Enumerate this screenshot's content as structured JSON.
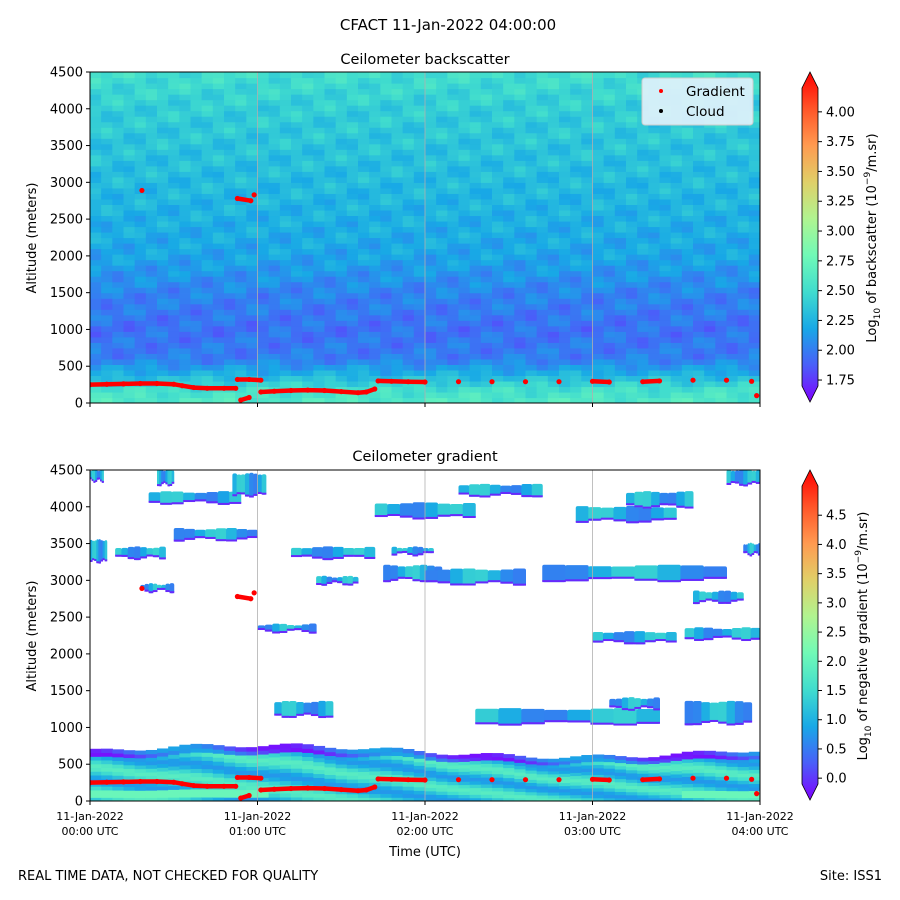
{
  "figure": {
    "suptitle": "CFACT 11-Jan-2022 04:00:00",
    "footer_left": "REAL TIME DATA, NOT CHECKED FOR QUALITY",
    "footer_right": "Site: ISS1"
  },
  "colors": {
    "rainbow": [
      "#8000ff",
      "#4a5ef9",
      "#18a8e6",
      "#40dcce",
      "#70fab7",
      "#b0f490",
      "#e0cf68",
      "#ff9a50",
      "#ff5528",
      "#ff0000"
    ],
    "gradient_marker": "#ff0000",
    "cloud_marker": "#000000",
    "grid": "#b0b0b0"
  },
  "chart_data": [
    {
      "type": "heatmap",
      "id": "backscatter",
      "title": "Ceilometer backscatter",
      "ylabel": "Altitude (meters)",
      "ylim": [
        0,
        4500
      ],
      "yticks": [
        0,
        500,
        1000,
        1500,
        2000,
        2500,
        3000,
        3500,
        4000,
        4500
      ],
      "xlim_hours": [
        0,
        4
      ],
      "colorbar": {
        "label": "Log10 of backscatter (10^-9/m.sr)",
        "range": [
          1.7,
          4.2
        ],
        "ticks": [
          "1.75",
          "2.00",
          "2.25",
          "2.50",
          "2.75",
          "3.00",
          "3.25",
          "3.50",
          "3.75",
          "4.00"
        ],
        "tick_values": [
          1.75,
          2.0,
          2.25,
          2.5,
          2.75,
          3.0,
          3.25,
          3.5,
          3.75,
          4.0
        ]
      },
      "legend": {
        "position": "top-right",
        "entries": [
          "Gradient",
          "Cloud"
        ]
      },
      "profile": [
        {
          "alt": 0,
          "val": 2.65
        },
        {
          "alt": 200,
          "val": 2.55
        },
        {
          "alt": 400,
          "val": 2.3
        },
        {
          "alt": 600,
          "val": 2.1
        },
        {
          "alt": 1000,
          "val": 2.05
        },
        {
          "alt": 1500,
          "val": 2.12
        },
        {
          "alt": 2000,
          "val": 2.25
        },
        {
          "alt": 3000,
          "val": 2.35
        },
        {
          "alt": 4000,
          "val": 2.45
        },
        {
          "alt": 4500,
          "val": 2.55
        }
      ]
    },
    {
      "type": "heatmap",
      "id": "gradient",
      "title": "Ceilometer gradient",
      "ylabel": "Altitude (meters)",
      "xlabel": "Time (UTC)",
      "ylim": [
        0,
        4500
      ],
      "yticks": [
        0,
        500,
        1000,
        1500,
        2000,
        2500,
        3000,
        3500,
        4000,
        4500
      ],
      "xlim_hours": [
        0,
        4
      ],
      "xtick_hours": [
        0,
        1,
        2,
        3,
        4
      ],
      "xticks": [
        [
          "11-Jan-2022",
          "00:00 UTC"
        ],
        [
          "11-Jan-2022",
          "01:00 UTC"
        ],
        [
          "11-Jan-2022",
          "02:00 UTC"
        ],
        [
          "11-Jan-2022",
          "03:00 UTC"
        ],
        [
          "11-Jan-2022",
          "04:00 UTC"
        ]
      ],
      "colorbar": {
        "label": "Log10 of negative gradient (10^-9/m.sr)",
        "range": [
          -0.1,
          5.0
        ],
        "ticks": [
          "0.0",
          "0.5",
          "1.0",
          "1.5",
          "2.0",
          "2.5",
          "3.0",
          "3.5",
          "4.0",
          "4.5"
        ],
        "tick_values": [
          0.0,
          0.5,
          1.0,
          1.5,
          2.0,
          2.5,
          3.0,
          3.5,
          4.0,
          4.5
        ]
      },
      "cloud_patches": [
        {
          "t0": 0.0,
          "t1": 0.1,
          "a0": 3250,
          "a1": 3550
        },
        {
          "t0": 0.15,
          "t1": 0.45,
          "a0": 3300,
          "a1": 3450
        },
        {
          "t0": 0.3,
          "t1": 0.5,
          "a0": 2850,
          "a1": 2950
        },
        {
          "t0": 0.35,
          "t1": 0.9,
          "a0": 4050,
          "a1": 4200
        },
        {
          "t0": 0.4,
          "t1": 0.5,
          "a0": 4300,
          "a1": 4500
        },
        {
          "t0": 0.5,
          "t1": 1.0,
          "a0": 3550,
          "a1": 3700
        },
        {
          "t0": 0.85,
          "t1": 1.05,
          "a0": 4150,
          "a1": 4450
        },
        {
          "t0": 1.2,
          "t1": 1.7,
          "a0": 3300,
          "a1": 3450
        },
        {
          "t0": 1.0,
          "t1": 1.35,
          "a0": 2300,
          "a1": 2400
        },
        {
          "t0": 1.1,
          "t1": 1.45,
          "a0": 1150,
          "a1": 1350
        },
        {
          "t0": 1.35,
          "t1": 1.6,
          "a0": 2950,
          "a1": 3050
        },
        {
          "t0": 1.75,
          "t1": 2.1,
          "a0": 3000,
          "a1": 3200
        },
        {
          "t0": 1.8,
          "t1": 2.05,
          "a0": 3350,
          "a1": 3450
        },
        {
          "t0": 1.7,
          "t1": 2.3,
          "a0": 3850,
          "a1": 4050
        },
        {
          "t0": 2.0,
          "t1": 2.6,
          "a0": 2950,
          "a1": 3150
        },
        {
          "t0": 2.2,
          "t1": 2.7,
          "a0": 4150,
          "a1": 4300
        },
        {
          "t0": 2.3,
          "t1": 3.4,
          "a0": 1050,
          "a1": 1250
        },
        {
          "t0": 2.7,
          "t1": 3.8,
          "a0": 3000,
          "a1": 3200
        },
        {
          "t0": 2.9,
          "t1": 3.5,
          "a0": 3800,
          "a1": 4000
        },
        {
          "t0": 3.0,
          "t1": 3.5,
          "a0": 2150,
          "a1": 2300
        },
        {
          "t0": 3.1,
          "t1": 3.4,
          "a0": 1250,
          "a1": 1400
        },
        {
          "t0": 3.2,
          "t1": 3.6,
          "a0": 4000,
          "a1": 4200
        },
        {
          "t0": 3.55,
          "t1": 4.0,
          "a0": 2200,
          "a1": 2350
        },
        {
          "t0": 3.55,
          "t1": 3.95,
          "a0": 1050,
          "a1": 1350
        },
        {
          "t0": 3.6,
          "t1": 3.9,
          "a0": 2700,
          "a1": 2850
        },
        {
          "t0": 3.8,
          "t1": 4.0,
          "a0": 4300,
          "a1": 4500
        },
        {
          "t0": 3.9,
          "t1": 4.0,
          "a0": 3350,
          "a1": 3500
        },
        {
          "t0": 0.0,
          "t1": 0.08,
          "a0": 4350,
          "a1": 4500
        }
      ]
    }
  ],
  "gradient_points": [
    {
      "t": 0.0,
      "alt": 250
    },
    {
      "t": 0.1,
      "alt": 255
    },
    {
      "t": 0.2,
      "alt": 260
    },
    {
      "t": 0.3,
      "alt": 265
    },
    {
      "t": 0.4,
      "alt": 265
    },
    {
      "t": 0.5,
      "alt": 255
    },
    {
      "t": 0.55,
      "alt": 235
    },
    {
      "t": 0.62,
      "alt": 210
    },
    {
      "t": 0.7,
      "alt": 200
    },
    {
      "t": 0.8,
      "alt": 200
    },
    {
      "t": 0.87,
      "alt": 200
    },
    {
      "t": 0.88,
      "alt": 320
    },
    {
      "t": 0.95,
      "alt": 320
    },
    {
      "t": 1.02,
      "alt": 310
    },
    {
      "t": 0.9,
      "alt": 40
    },
    {
      "t": 0.95,
      "alt": 75
    },
    {
      "t": 1.02,
      "alt": 150
    },
    {
      "t": 1.1,
      "alt": 160
    },
    {
      "t": 1.2,
      "alt": 170
    },
    {
      "t": 1.3,
      "alt": 175
    },
    {
      "t": 1.4,
      "alt": 170
    },
    {
      "t": 1.5,
      "alt": 155
    },
    {
      "t": 1.6,
      "alt": 140
    },
    {
      "t": 1.65,
      "alt": 150
    },
    {
      "t": 1.7,
      "alt": 190
    },
    {
      "t": 1.72,
      "alt": 300
    },
    {
      "t": 1.8,
      "alt": 295
    },
    {
      "t": 1.9,
      "alt": 290
    },
    {
      "t": 2.0,
      "alt": 285
    },
    {
      "t": 2.2,
      "alt": 290
    },
    {
      "t": 2.4,
      "alt": 290
    },
    {
      "t": 2.6,
      "alt": 290
    },
    {
      "t": 2.8,
      "alt": 290
    },
    {
      "t": 3.0,
      "alt": 295
    },
    {
      "t": 3.1,
      "alt": 285
    },
    {
      "t": 3.3,
      "alt": 290
    },
    {
      "t": 3.4,
      "alt": 300
    },
    {
      "t": 3.6,
      "alt": 310
    },
    {
      "t": 3.8,
      "alt": 310
    },
    {
      "t": 3.95,
      "alt": 295
    },
    {
      "t": 3.98,
      "alt": 100
    },
    {
      "t": 0.31,
      "alt": 2890
    },
    {
      "t": 0.88,
      "alt": 2780
    },
    {
      "t": 0.96,
      "alt": 2750
    },
    {
      "t": 0.98,
      "alt": 2830
    }
  ],
  "cloud_points": []
}
